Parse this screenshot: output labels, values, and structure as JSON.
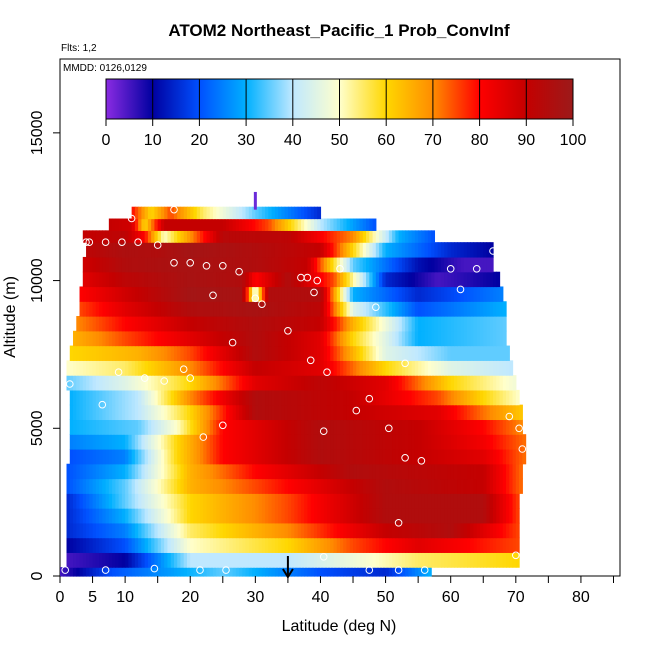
{
  "chart_data": {
    "type": "heatmap",
    "title": "ATOM2 Northeast_Pacific_1 Prob_ConvInf",
    "flights_label": "Flts: 1,2",
    "dates_label": "MMDD: 0126,0129",
    "xlabel": "Latitude (deg N)",
    "ylabel": "Altitude (m)",
    "xlim": [
      0,
      86
    ],
    "ylim": [
      0,
      17500
    ],
    "x_ticks": [
      0,
      5,
      10,
      20,
      30,
      40,
      50,
      60,
      70,
      80
    ],
    "x_minor_ticks": [
      15,
      25,
      35,
      45,
      55,
      65,
      75,
      85
    ],
    "y_ticks": [
      0,
      5000,
      10000,
      15000
    ],
    "colorbar": {
      "ticks": [
        0,
        10,
        20,
        30,
        40,
        50,
        60,
        70,
        80,
        90,
        100
      ],
      "range": [
        0,
        100
      ],
      "stops": [
        "#8a2be2",
        "#0000a0",
        "#0050ff",
        "#00b0ff",
        "#bfe8ff",
        "#ffffcc",
        "#ffd700",
        "#ff8c00",
        "#ff0000",
        "#c40000",
        "#9c1a1a"
      ]
    },
    "marker": {
      "latitude": 35,
      "label": "arrow"
    },
    "extra_point": {
      "latitude": 30,
      "altitude_range": [
        12400,
        13000
      ]
    },
    "colors": {
      "points": "#ffffff",
      "frame": "#000000"
    },
    "layers": [
      {
        "z0": 0,
        "z1": 300,
        "lat0": 0,
        "lat1": 57,
        "kp": [
          [
            0,
            5
          ],
          [
            8,
            20
          ],
          [
            25,
            35
          ],
          [
            40,
            20
          ],
          [
            50,
            15
          ],
          [
            57,
            30
          ]
        ]
      },
      {
        "z0": 300,
        "z1": 800,
        "lat0": 1,
        "lat1": 70.5,
        "kp": [
          [
            1,
            5
          ],
          [
            10,
            10
          ],
          [
            20,
            40
          ],
          [
            35,
            40
          ],
          [
            55,
            55
          ],
          [
            70.5,
            60
          ]
        ]
      },
      {
        "z0": 800,
        "z1": 1300,
        "lat0": 1,
        "lat1": 70.5,
        "kp": [
          [
            1,
            10
          ],
          [
            10,
            20
          ],
          [
            20,
            50
          ],
          [
            35,
            60
          ],
          [
            45,
            75
          ],
          [
            55,
            85
          ],
          [
            70.5,
            75
          ]
        ]
      },
      {
        "z0": 1300,
        "z1": 1800,
        "lat0": 1,
        "lat1": 70.5,
        "kp": [
          [
            1,
            15
          ],
          [
            10,
            25
          ],
          [
            20,
            55
          ],
          [
            35,
            70
          ],
          [
            50,
            90
          ],
          [
            60,
            95
          ],
          [
            70.5,
            75
          ]
        ]
      },
      {
        "z0": 1800,
        "z1": 2300,
        "lat0": 1,
        "lat1": 70.5,
        "kp": [
          [
            1,
            15
          ],
          [
            10,
            30
          ],
          [
            20,
            60
          ],
          [
            35,
            75
          ],
          [
            50,
            95
          ],
          [
            65,
            95
          ],
          [
            70.5,
            75
          ]
        ]
      },
      {
        "z0": 2300,
        "z1": 2800,
        "lat0": 1,
        "lat1": 70.5,
        "kp": [
          [
            1,
            15
          ],
          [
            10,
            35
          ],
          [
            20,
            60
          ],
          [
            35,
            75
          ],
          [
            50,
            95
          ],
          [
            65,
            95
          ],
          [
            70.5,
            75
          ]
        ]
      },
      {
        "z0": 2800,
        "z1": 3300,
        "lat0": 1,
        "lat1": 71,
        "kp": [
          [
            1,
            20
          ],
          [
            10,
            35
          ],
          [
            20,
            65
          ],
          [
            35,
            80
          ],
          [
            50,
            95
          ],
          [
            65,
            90
          ],
          [
            71,
            72
          ]
        ]
      },
      {
        "z0": 3300,
        "z1": 3800,
        "lat0": 1,
        "lat1": 71,
        "kp": [
          [
            1,
            20
          ],
          [
            10,
            30
          ],
          [
            20,
            65
          ],
          [
            30,
            80
          ],
          [
            45,
            95
          ],
          [
            65,
            90
          ],
          [
            71,
            72
          ]
        ]
      },
      {
        "z0": 3800,
        "z1": 4300,
        "lat0": 1.5,
        "lat1": 71.5,
        "kp": [
          [
            1.5,
            20
          ],
          [
            10,
            25
          ],
          [
            18,
            60
          ],
          [
            25,
            80
          ],
          [
            40,
            95
          ],
          [
            55,
            90
          ],
          [
            65,
            85
          ],
          [
            71.5,
            72
          ]
        ]
      },
      {
        "z0": 4300,
        "z1": 4800,
        "lat0": 1.5,
        "lat1": 71.5,
        "kp": [
          [
            1.5,
            25
          ],
          [
            10,
            30
          ],
          [
            18,
            60
          ],
          [
            25,
            80
          ],
          [
            40,
            95
          ],
          [
            55,
            90
          ],
          [
            65,
            82
          ],
          [
            71.5,
            72
          ]
        ]
      },
      {
        "z0": 4800,
        "z1": 5300,
        "lat0": 1.5,
        "lat1": 71,
        "kp": [
          [
            1.5,
            30
          ],
          [
            12,
            35
          ],
          [
            18,
            50
          ],
          [
            25,
            80
          ],
          [
            40,
            95
          ],
          [
            55,
            90
          ],
          [
            65,
            80
          ],
          [
            71,
            70
          ]
        ]
      },
      {
        "z0": 5300,
        "z1": 5800,
        "lat0": 1.5,
        "lat1": 71,
        "kp": [
          [
            1.5,
            30
          ],
          [
            12,
            40
          ],
          [
            20,
            60
          ],
          [
            30,
            95
          ],
          [
            45,
            90
          ],
          [
            58,
            85
          ],
          [
            65,
            72
          ],
          [
            71,
            62
          ]
        ]
      },
      {
        "z0": 5800,
        "z1": 6300,
        "lat0": 1.5,
        "lat1": 70.5,
        "kp": [
          [
            1.5,
            30
          ],
          [
            12,
            40
          ],
          [
            20,
            70
          ],
          [
            30,
            95
          ],
          [
            45,
            90
          ],
          [
            58,
            75
          ],
          [
            65,
            60
          ],
          [
            70.5,
            50
          ]
        ]
      },
      {
        "z0": 6300,
        "z1": 6800,
        "lat0": 1,
        "lat1": 70,
        "kp": [
          [
            1,
            35
          ],
          [
            10,
            45
          ],
          [
            20,
            60
          ],
          [
            30,
            85
          ],
          [
            40,
            92
          ],
          [
            50,
            85
          ],
          [
            60,
            60
          ],
          [
            70,
            48
          ]
        ]
      },
      {
        "z0": 6800,
        "z1": 7300,
        "lat0": 1,
        "lat1": 69.5,
        "kp": [
          [
            1,
            50
          ],
          [
            10,
            55
          ],
          [
            20,
            70
          ],
          [
            30,
            90
          ],
          [
            40,
            85
          ],
          [
            50,
            60
          ],
          [
            60,
            45
          ],
          [
            69.5,
            40
          ]
        ]
      },
      {
        "z0": 7300,
        "z1": 7800,
        "lat0": 1.5,
        "lat1": 69,
        "kp": [
          [
            1.5,
            60
          ],
          [
            12,
            65
          ],
          [
            20,
            75
          ],
          [
            30,
            95
          ],
          [
            40,
            85
          ],
          [
            50,
            45
          ],
          [
            60,
            35
          ],
          [
            69,
            35
          ]
        ]
      },
      {
        "z0": 7800,
        "z1": 8300,
        "lat0": 2,
        "lat1": 68.5,
        "kp": [
          [
            2,
            65
          ],
          [
            10,
            75
          ],
          [
            20,
            85
          ],
          [
            30,
            95
          ],
          [
            40,
            85
          ],
          [
            45,
            60
          ],
          [
            55,
            30
          ],
          [
            68.5,
            35
          ]
        ]
      },
      {
        "z0": 8300,
        "z1": 8800,
        "lat0": 2.5,
        "lat1": 68.5,
        "kp": [
          [
            2.5,
            70
          ],
          [
            10,
            80
          ],
          [
            20,
            90
          ],
          [
            30,
            95
          ],
          [
            40,
            90
          ],
          [
            45,
            65
          ],
          [
            55,
            30
          ],
          [
            68.5,
            35
          ]
        ]
      },
      {
        "z0": 8800,
        "z1": 9300,
        "lat0": 3,
        "lat1": 68.5,
        "kp": [
          [
            3,
            75
          ],
          [
            10,
            85
          ],
          [
            20,
            95
          ],
          [
            30,
            97
          ],
          [
            40,
            92
          ],
          [
            45,
            45
          ],
          [
            55,
            20
          ],
          [
            68.5,
            30
          ]
        ]
      },
      {
        "z0": 9300,
        "z1": 9800,
        "lat0": 3,
        "lat1": 68,
        "kp": [
          [
            3,
            80
          ],
          [
            10,
            88
          ],
          [
            20,
            98
          ],
          [
            28,
            97
          ],
          [
            30,
            45
          ],
          [
            32,
            95
          ],
          [
            40,
            95
          ],
          [
            45,
            30
          ],
          [
            55,
            15
          ],
          [
            68,
            25
          ]
        ]
      },
      {
        "z0": 9800,
        "z1": 10300,
        "lat0": 3.5,
        "lat1": 67.5,
        "kp": [
          [
            3.5,
            85
          ],
          [
            10,
            92
          ],
          [
            20,
            97
          ],
          [
            28,
            95
          ],
          [
            30,
            80
          ],
          [
            35,
            95
          ],
          [
            42,
            75
          ],
          [
            50,
            15
          ],
          [
            58,
            5
          ],
          [
            67.5,
            10
          ]
        ]
      },
      {
        "z0": 10300,
        "z1": 10800,
        "lat0": 3.5,
        "lat1": 66.5,
        "kp": [
          [
            3.5,
            88
          ],
          [
            10,
            95
          ],
          [
            20,
            97
          ],
          [
            30,
            95
          ],
          [
            38,
            90
          ],
          [
            45,
            35
          ],
          [
            55,
            12
          ],
          [
            62,
            5
          ],
          [
            66.5,
            5
          ]
        ]
      },
      {
        "z0": 10800,
        "z1": 11300,
        "lat0": 4,
        "lat1": 66.5,
        "kp": [
          [
            4,
            92
          ],
          [
            10,
            96
          ],
          [
            15,
            95
          ],
          [
            20,
            98
          ],
          [
            30,
            95
          ],
          [
            40,
            90
          ],
          [
            50,
            30
          ],
          [
            60,
            15
          ],
          [
            66.5,
            10
          ]
        ]
      },
      {
        "z0": 11300,
        "z1": 11700,
        "lat0": 3.5,
        "lat1": 57.5,
        "kp": [
          [
            3.5,
            90
          ],
          [
            10,
            92
          ],
          [
            13,
            80
          ],
          [
            16,
            50
          ],
          [
            25,
            93
          ],
          [
            35,
            92
          ],
          [
            45,
            70
          ],
          [
            52,
            30
          ],
          [
            57.5,
            20
          ]
        ]
      },
      {
        "z0": 11700,
        "z1": 12100,
        "lat0": 7.5,
        "lat1": 48.5,
        "kp": [
          [
            7.5,
            90
          ],
          [
            11,
            88
          ],
          [
            13,
            60
          ],
          [
            16,
            90
          ],
          [
            25,
            90
          ],
          [
            32,
            75
          ],
          [
            40,
            40
          ],
          [
            48.5,
            20
          ]
        ]
      },
      {
        "z0": 12100,
        "z1": 12500,
        "lat0": 11,
        "lat1": 40,
        "kp": [
          [
            11,
            80
          ],
          [
            14,
            60
          ],
          [
            17,
            75
          ],
          [
            22,
            55
          ],
          [
            30,
            35
          ],
          [
            35,
            25
          ],
          [
            40,
            15
          ]
        ]
      }
    ],
    "points": [
      [
        0.8,
        200
      ],
      [
        7,
        200
      ],
      [
        14.5,
        250
      ],
      [
        21.5,
        200
      ],
      [
        25.5,
        200
      ],
      [
        40.5,
        650
      ],
      [
        47.5,
        200
      ],
      [
        52,
        200
      ],
      [
        56,
        200
      ],
      [
        70,
        700
      ],
      [
        52,
        1800
      ],
      [
        55.5,
        3900
      ],
      [
        53,
        4000
      ],
      [
        71,
        4300
      ],
      [
        22,
        4700
      ],
      [
        25,
        5100
      ],
      [
        40.5,
        4900
      ],
      [
        50.5,
        5000
      ],
      [
        70.5,
        5000
      ],
      [
        69,
        5400
      ],
      [
        6.5,
        5800
      ],
      [
        45.5,
        5600
      ],
      [
        47.5,
        6000
      ],
      [
        1.5,
        6500
      ],
      [
        9,
        6900
      ],
      [
        13,
        6700
      ],
      [
        16,
        6600
      ],
      [
        20,
        6700
      ],
      [
        19,
        7000
      ],
      [
        41,
        6900
      ],
      [
        38.5,
        7300
      ],
      [
        53,
        7200
      ],
      [
        26.5,
        7900
      ],
      [
        35,
        8300
      ],
      [
        30,
        9400
      ],
      [
        31,
        9200
      ],
      [
        23.5,
        9500
      ],
      [
        39,
        9600
      ],
      [
        48.5,
        9100
      ],
      [
        61.5,
        9700
      ],
      [
        37,
        10100
      ],
      [
        38,
        10100
      ],
      [
        39.5,
        10000
      ],
      [
        43,
        10400
      ],
      [
        20,
        10600
      ],
      [
        17.5,
        10600
      ],
      [
        22.5,
        10500
      ],
      [
        25,
        10500
      ],
      [
        27.5,
        10300
      ],
      [
        60,
        10400
      ],
      [
        64,
        10400
      ],
      [
        4,
        11300
      ],
      [
        7,
        11300
      ],
      [
        9.5,
        11300
      ],
      [
        12,
        11300
      ],
      [
        15,
        11200
      ],
      [
        66.5,
        11000
      ],
      [
        4.5,
        11300
      ],
      [
        11,
        12100
      ],
      [
        17.5,
        12400
      ]
    ]
  }
}
